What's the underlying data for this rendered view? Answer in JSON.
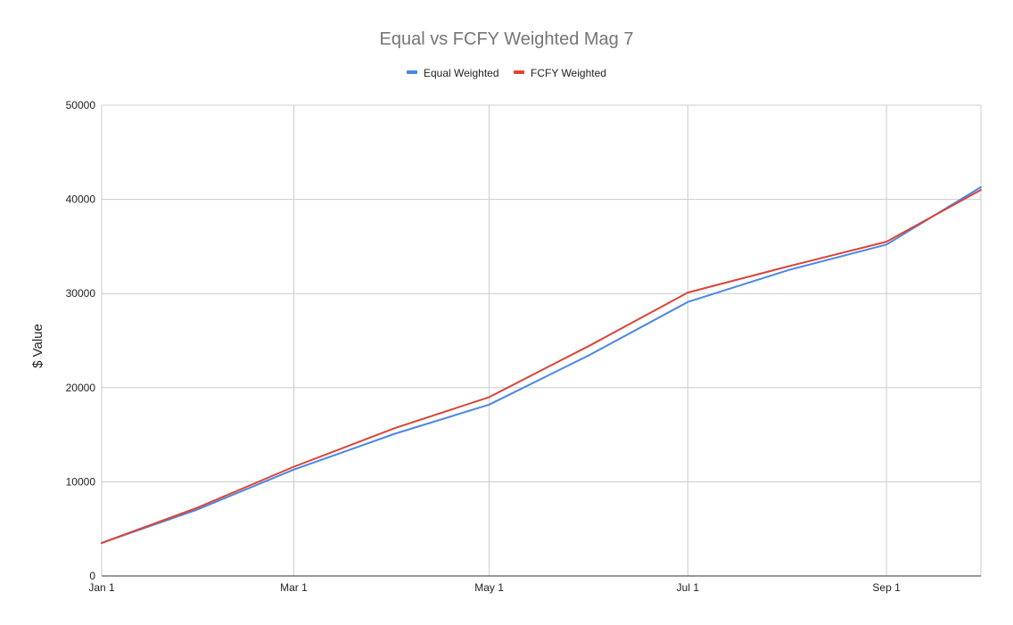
{
  "chart_data": {
    "type": "line",
    "title": "Equal vs FCFY Weighted Mag 7",
    "xlabel": "",
    "ylabel": "$ Value",
    "x_tick_labels": [
      "Jan 1",
      "Mar 1",
      "May 1",
      "Jul 1",
      "Sep 1"
    ],
    "x_tick_days": [
      0,
      59,
      119,
      180,
      241
    ],
    "x_days": [
      0,
      29,
      59,
      90,
      119,
      150,
      180,
      211,
      241,
      270
    ],
    "ylim": [
      0,
      50000
    ],
    "y_ticks": [
      0,
      10000,
      20000,
      30000,
      40000,
      50000
    ],
    "grid": true,
    "legend_position": "top",
    "series": [
      {
        "name": "Equal Weighted",
        "color": "#4a86e8",
        "values": [
          3500,
          7000,
          11300,
          15100,
          18200,
          23500,
          29100,
          32500,
          35200,
          41300
        ]
      },
      {
        "name": "FCFY Weighted",
        "color": "#db4437",
        "values": [
          3500,
          7200,
          11600,
          15700,
          19000,
          24500,
          30100,
          32900,
          35500,
          41000
        ]
      }
    ]
  }
}
